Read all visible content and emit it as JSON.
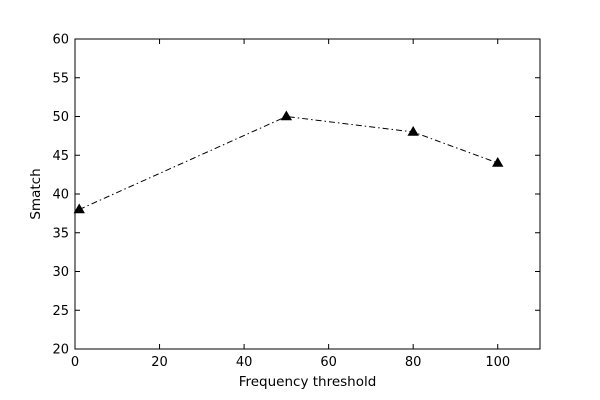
{
  "chart_data": {
    "type": "line",
    "title": "",
    "xlabel": "Frequency threshold",
    "ylabel": "Smatch",
    "xlim": [
      0,
      110
    ],
    "ylim": [
      20,
      60
    ],
    "x_ticks": [
      0,
      20,
      40,
      60,
      80,
      100
    ],
    "y_ticks": [
      20,
      25,
      30,
      35,
      40,
      45,
      50,
      55,
      60
    ],
    "grid": false,
    "series": [
      {
        "x": [
          1,
          50,
          80,
          100
        ],
        "y": [
          38,
          50,
          48,
          44
        ],
        "line_style": "dash-dot",
        "marker": "triangle",
        "color": "#000000"
      }
    ]
  }
}
